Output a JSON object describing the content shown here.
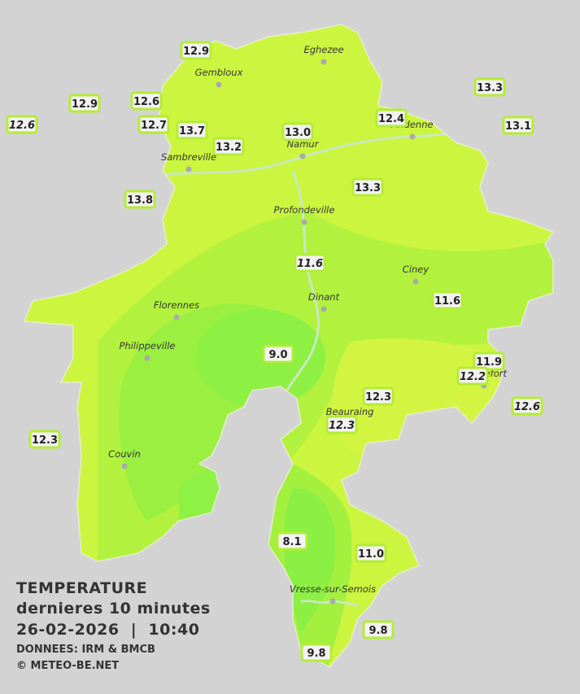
{
  "title": "TEMPERATURE",
  "subtitle": "dernieres 10 minutes",
  "timestamp": "26-02-2026  |  10:40",
  "source": "DONNEES: IRM & BMCB",
  "copyright": "© METEO-BE.NET",
  "cities": [
    "Eghezee",
    "Gembloux",
    "Andenne",
    "Namur",
    "Sambreville",
    "Profondeville",
    "Ciney",
    "Dinant",
    "Florennes",
    "Philippeville",
    "Beauraing",
    "Rochefort",
    "Couvin",
    "Vresse-sur-Semois"
  ],
  "stations": [
    {
      "label": "12.9",
      "italic": false
    },
    {
      "label": "12.9",
      "italic": false
    },
    {
      "label": "12.6",
      "italic": true
    },
    {
      "label": "12.6",
      "italic": false
    },
    {
      "label": "12.7",
      "italic": false
    },
    {
      "label": "13.7",
      "italic": false
    },
    {
      "label": "13.2",
      "italic": false
    },
    {
      "label": "13.0",
      "italic": false
    },
    {
      "label": "12.4",
      "italic": false
    },
    {
      "label": "13.3",
      "italic": false
    },
    {
      "label": "13.1",
      "italic": false
    },
    {
      "label": "13.3",
      "italic": false
    },
    {
      "label": "13.8",
      "italic": false
    },
    {
      "label": "11.6",
      "italic": true
    },
    {
      "label": "11.6",
      "italic": false
    },
    {
      "label": "9.0",
      "italic": false
    },
    {
      "label": "11.9",
      "italic": false
    },
    {
      "label": "12.2",
      "italic": true
    },
    {
      "label": "12.6",
      "italic": true
    },
    {
      "label": "12.3",
      "italic": false
    },
    {
      "label": "12.3",
      "italic": true
    },
    {
      "label": "12.3",
      "italic": false
    },
    {
      "label": "8.1",
      "italic": false
    },
    {
      "label": "11.0",
      "italic": false
    },
    {
      "label": "9.8",
      "italic": false
    },
    {
      "label": "9.8",
      "italic": false
    }
  ]
}
